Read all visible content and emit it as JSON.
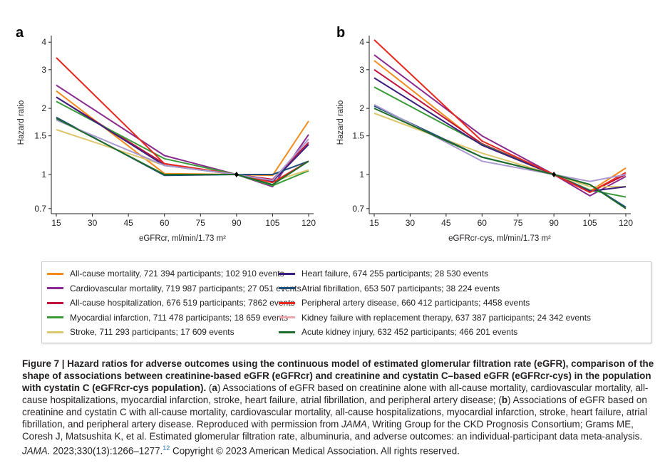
{
  "chart_data": [
    {
      "type": "line",
      "panel_label": "a",
      "xlabel": "eGFRcr, ml/min/1.73 m²",
      "ylabel": "Hazard ratio",
      "x": [
        15,
        60,
        90,
        105,
        120
      ],
      "xticks": [
        15,
        30,
        45,
        60,
        75,
        90,
        105,
        120
      ],
      "yticks": [
        0.7,
        1,
        1.5,
        2,
        3,
        4
      ],
      "ytick_labels": [
        "0.7",
        "1",
        "1.5",
        "2",
        "3",
        "4"
      ],
      "yscale": "log",
      "xlim": [
        15,
        120
      ],
      "ylim": [
        0.7,
        4.2
      ],
      "reference_point": [
        90,
        1
      ],
      "series": [
        {
          "name": "All-cause mortality",
          "color": "#f28a1c",
          "values": [
            2.4,
            1.01,
            1.0,
            0.99,
            1.75
          ]
        },
        {
          "name": "Cardiovascular mortality",
          "color": "#8b2a8e",
          "values": [
            2.55,
            1.22,
            1.0,
            0.88,
            1.52
          ]
        },
        {
          "name": "All-cause hospitalization",
          "color": "#c0143c",
          "values": [
            2.25,
            1.12,
            1.0,
            0.95,
            1.4
          ]
        },
        {
          "name": "Myocardial infarction",
          "color": "#3a9a3a",
          "values": [
            2.15,
            1.18,
            1.0,
            0.89,
            1.04
          ]
        },
        {
          "name": "Stroke",
          "color": "#dcc66e",
          "values": [
            1.6,
            1.1,
            1.0,
            0.93,
            1.05
          ]
        },
        {
          "name": "Heart failure",
          "color": "#3b1f7e",
          "values": [
            2.25,
            1.1,
            1.0,
            0.93,
            1.37
          ]
        },
        {
          "name": "Atrial fibrillation",
          "color": "#1f4e79",
          "values": [
            1.82,
            0.99,
            1.0,
            1.0,
            1.15
          ]
        },
        {
          "name": "Peripheral artery disease",
          "color": "#e8281e",
          "values": [
            3.4,
            1.12,
            1.0,
            0.92,
            1.15
          ]
        },
        {
          "name": "Kidney failure with replacement therapy",
          "color": "#a99ad0",
          "values": [
            1.77,
            1.1,
            1.0,
            0.94,
            1.45
          ]
        },
        {
          "name": "Acute kidney injury",
          "color": "#1e6b2a",
          "values": [
            1.8,
            1.0,
            1.0,
            0.9,
            1.15
          ]
        }
      ]
    },
    {
      "type": "line",
      "panel_label": "b",
      "xlabel": "eGFRcr-cys, ml/min/1.73 m²",
      "ylabel": "Hazard ratio",
      "x": [
        15,
        60,
        90,
        105,
        120
      ],
      "xticks": [
        15,
        30,
        45,
        60,
        75,
        90,
        105,
        120
      ],
      "yticks": [
        0.7,
        1,
        1.5,
        2,
        3,
        4
      ],
      "ytick_labels": [
        "0.7",
        "1",
        "1.5",
        "2",
        "3",
        "4"
      ],
      "yscale": "log",
      "xlim": [
        15,
        120
      ],
      "ylim": [
        0.7,
        4.2
      ],
      "reference_point": [
        90,
        1
      ],
      "series": [
        {
          "name": "All-cause mortality",
          "color": "#f28a1c",
          "values": [
            3.3,
            1.36,
            1.0,
            0.84,
            1.07
          ]
        },
        {
          "name": "Cardiovascular mortality",
          "color": "#8b2a8e",
          "values": [
            3.5,
            1.5,
            1.0,
            0.8,
            0.98
          ]
        },
        {
          "name": "All-cause hospitalization",
          "color": "#c0143c",
          "values": [
            3.0,
            1.38,
            1.0,
            0.83,
            1.0
          ]
        },
        {
          "name": "Myocardial infarction",
          "color": "#3a9a3a",
          "values": [
            2.5,
            1.37,
            1.0,
            0.85,
            0.79
          ]
        },
        {
          "name": "Stroke",
          "color": "#dcc66e",
          "values": [
            1.9,
            1.25,
            1.0,
            0.88,
            0.88
          ]
        },
        {
          "name": "Heart failure",
          "color": "#3b1f7e",
          "values": [
            2.75,
            1.36,
            1.0,
            0.84,
            0.88
          ]
        },
        {
          "name": "Atrial fibrillation",
          "color": "#1f4e79",
          "values": [
            2.05,
            1.2,
            1.0,
            0.9,
            0.71
          ]
        },
        {
          "name": "Peripheral artery disease",
          "color": "#e8281e",
          "values": [
            4.1,
            1.42,
            1.0,
            0.83,
            1.02
          ]
        },
        {
          "name": "Kidney failure with replacement therapy",
          "color": "#a99ad0",
          "values": [
            2.08,
            1.15,
            1.0,
            0.93,
            1.0
          ]
        },
        {
          "name": "Acute kidney injury",
          "color": "#1e6b2a",
          "values": [
            2.0,
            1.2,
            1.0,
            0.9,
            0.7
          ]
        }
      ]
    }
  ],
  "legend": [
    {
      "label": "All-cause mortality, 721 394 participants; 102 910 events",
      "color": "#f28a1c"
    },
    {
      "label": "Cardiovascular mortality, 719 987 participants; 27 051 events",
      "color": "#8b2a8e"
    },
    {
      "label": "All-cause hospitalization, 676 519 participants; 7862 events",
      "color": "#c0143c"
    },
    {
      "label": "Myocardial infarction, 711 478 participants; 18 659 events",
      "color": "#3a9a3a"
    },
    {
      "label": "Stroke, 711 293 participants; 17 609 events",
      "color": "#dcc66e"
    },
    {
      "label": "Heart failure, 674 255 participants; 28 530 events",
      "color": "#3b1f7e"
    },
    {
      "label": "Atrial fibrillation, 653 507 participants; 38 224 events",
      "color": "#1f4e79"
    },
    {
      "label": "Peripheral artery disease, 660 412 participants; 4458 events",
      "color": "#e8281e"
    },
    {
      "label": "Kidney failure with replacement therapy, 637 387 participants; 24 342 events",
      "color": "#e8a8b0"
    },
    {
      "label": "Acute kidney injury, 632 452 participants; 466 201 events",
      "color": "#1e6b2a"
    }
  ],
  "caption": {
    "title": "Figure 7 | Hazard ratios for adverse outcomes using the continuous model of estimated glomerular filtration rate (eGFR), comparison of the shape of associations between creatinine-based eGFR (eGFRcr) and creatinine and cystatin C–based eGFR (eGFRcr-cys) in the population with cystatin C (eGFRcr-cys population).",
    "a_label": "a",
    "a_text": ") Associations of eGFR based on creatinine alone with all-cause mortality, cardiovascular mortality, all-cause hospitalizations, myocardial infarction, stroke, heart failure, atrial fibrillation, and peripheral artery disease; (",
    "b_label": "b",
    "b_text": ") Associations of eGFR based on creatinine and cystatin C with all-cause mortality, cardiovascular mortality, all-cause hospitalizations, myocardial infarction, stroke, heart failure, atrial fibrillation, and peripheral artery disease. Reproduced with permission from ",
    "jama1": "JAMA",
    "text2": ", Writing Group for the CKD Prognosis Consortium; Grams ME, Coresh J, Matsushita K, et al. Estimated glomerular filtration rate, albuminuria, and adverse outcomes: an individual-participant data meta-analysis. ",
    "jama2": "JAMA.",
    "text3": " 2023;330(13):1266–1277.",
    "ref": "12",
    "text4": " Copyright © 2023 American Medical Association. All rights reserved."
  }
}
